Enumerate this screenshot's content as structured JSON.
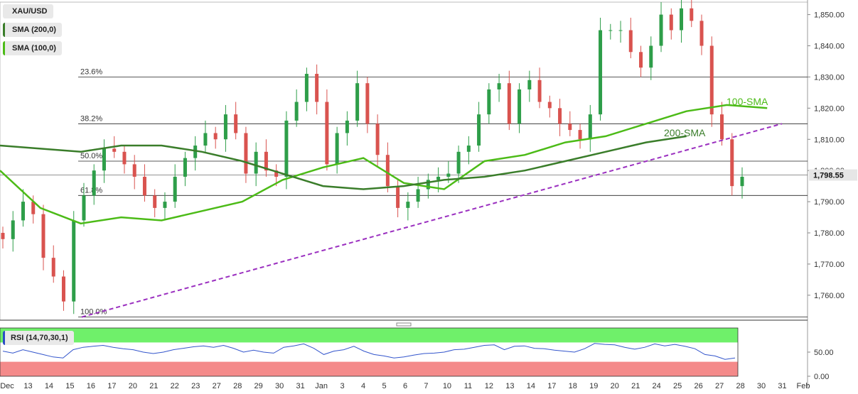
{
  "legend": {
    "symbol": "XAU/USD",
    "sma200": "SMA (200,0)",
    "sma100": "SMA (100,0)",
    "rsi": "RSI (14,70,30,1)"
  },
  "colors": {
    "bull": "#2e9e49",
    "bear": "#d9534f",
    "sma100": "#4cbb17",
    "sma200": "#3a7d2a",
    "trendline": "#9b30c0",
    "rsi_line": "#3355cc",
    "rsi_overbought": "#6ff06a",
    "rsi_oversold": "#f48a8a",
    "price_tag": "#e6e6e6"
  },
  "chart_data": [
    {
      "type": "candlestick",
      "title": "XAU/USD",
      "ylim": [
        1752,
        1854
      ],
      "y_ticks": [
        "1,760.00",
        "1,770.00",
        "1,780.00",
        "1,790.00",
        "1,800.00",
        "1,810.00",
        "1,820.00",
        "1,830.00",
        "1,840.00",
        "1,850.00"
      ],
      "y_tick_values": [
        1760,
        1770,
        1780,
        1790,
        1800,
        1810,
        1820,
        1830,
        1840,
        1850
      ],
      "x_ticks": [
        "Dec",
        "13",
        "14",
        "15",
        "16",
        "17",
        "20",
        "21",
        "22",
        "23",
        "27",
        "28",
        "29",
        "30",
        "31",
        "Jan",
        "3",
        "4",
        "5",
        "6",
        "7",
        "10",
        "11",
        "12",
        "13",
        "14",
        "17",
        "18",
        "19",
        "20",
        "21",
        "24",
        "25",
        "26",
        "27",
        "28",
        "30",
        "31",
        "Feb"
      ],
      "last_price": 1798.55,
      "last_price_label": "1,798.55",
      "ohlc_close_path": [
        1778,
        1784,
        1790,
        1786,
        1772,
        1766,
        1758,
        1784,
        1792,
        1800,
        1807,
        1806,
        1802,
        1798,
        1792,
        1788,
        1790,
        1798,
        1804,
        1808,
        1812,
        1810,
        1818,
        1812,
        1799,
        1806,
        1800,
        1798,
        1816,
        1822,
        1831,
        1822,
        1802,
        1812,
        1816,
        1828,
        1815,
        1805,
        1795,
        1788,
        1790,
        1794,
        1797,
        1798,
        1799,
        1806,
        1808,
        1818,
        1826,
        1828,
        1815,
        1826,
        1829,
        1822,
        1820,
        1815,
        1813,
        1810,
        1818,
        1845,
        1845,
        1845,
        1838,
        1833,
        1840,
        1850,
        1845,
        1852,
        1848,
        1840,
        1818,
        1810,
        1795,
        1798
      ],
      "fibonacci": [
        {
          "label": "100.0%",
          "value": 1753
        },
        {
          "label": "61.8%",
          "value": 1792
        },
        {
          "label": "50.0%",
          "value": 1803
        },
        {
          "label": "38.2%",
          "value": 1815
        },
        {
          "label": "23.6%",
          "value": 1830
        }
      ],
      "sma100_label": "100-SMA",
      "sma200_label": "200-SMA",
      "sma100_points": [
        [
          0,
          1800
        ],
        [
          0.05,
          1788
        ],
        [
          0.1,
          1783
        ],
        [
          0.15,
          1785
        ],
        [
          0.2,
          1784
        ],
        [
          0.25,
          1787
        ],
        [
          0.3,
          1790
        ],
        [
          0.35,
          1797
        ],
        [
          0.4,
          1801
        ],
        [
          0.45,
          1804
        ],
        [
          0.5,
          1796
        ],
        [
          0.55,
          1794
        ],
        [
          0.6,
          1803
        ],
        [
          0.65,
          1805
        ],
        [
          0.7,
          1809
        ],
        [
          0.75,
          1811
        ],
        [
          0.8,
          1815
        ],
        [
          0.85,
          1819
        ],
        [
          0.9,
          1821
        ],
        [
          0.95,
          1820
        ]
      ],
      "sma200_points": [
        [
          0,
          1808
        ],
        [
          0.05,
          1807
        ],
        [
          0.1,
          1806
        ],
        [
          0.15,
          1808
        ],
        [
          0.2,
          1808
        ],
        [
          0.25,
          1806
        ],
        [
          0.3,
          1803
        ],
        [
          0.35,
          1799
        ],
        [
          0.4,
          1795
        ],
        [
          0.45,
          1794
        ],
        [
          0.5,
          1795
        ],
        [
          0.55,
          1797
        ],
        [
          0.6,
          1798
        ],
        [
          0.65,
          1800
        ],
        [
          0.7,
          1803
        ],
        [
          0.75,
          1806
        ],
        [
          0.8,
          1809
        ],
        [
          0.85,
          1811
        ]
      ],
      "trendline": {
        "from": [
          0,
          1753
        ],
        "to": [
          1,
          1815
        ]
      }
    },
    {
      "type": "line",
      "title": "RSI (14,70,30,1)",
      "ylim": [
        0,
        100
      ],
      "y_ticks": [
        "50.00",
        "0.00"
      ],
      "y_tick_values": [
        50,
        0
      ],
      "overbought": 70,
      "oversold": 30,
      "rsi_path": [
        52,
        48,
        55,
        50,
        45,
        40,
        38,
        55,
        60,
        62,
        64,
        60,
        57,
        55,
        50,
        47,
        50,
        55,
        58,
        61,
        63,
        60,
        64,
        58,
        50,
        54,
        50,
        48,
        60,
        63,
        67,
        58,
        45,
        52,
        55,
        62,
        52,
        45,
        42,
        38,
        40,
        44,
        47,
        48,
        50,
        55,
        56,
        60,
        64,
        65,
        55,
        62,
        63,
        58,
        57,
        54,
        52,
        50,
        57,
        68,
        66,
        65,
        60,
        56,
        60,
        67,
        63,
        66,
        62,
        57,
        45,
        42,
        35,
        38
      ]
    }
  ]
}
